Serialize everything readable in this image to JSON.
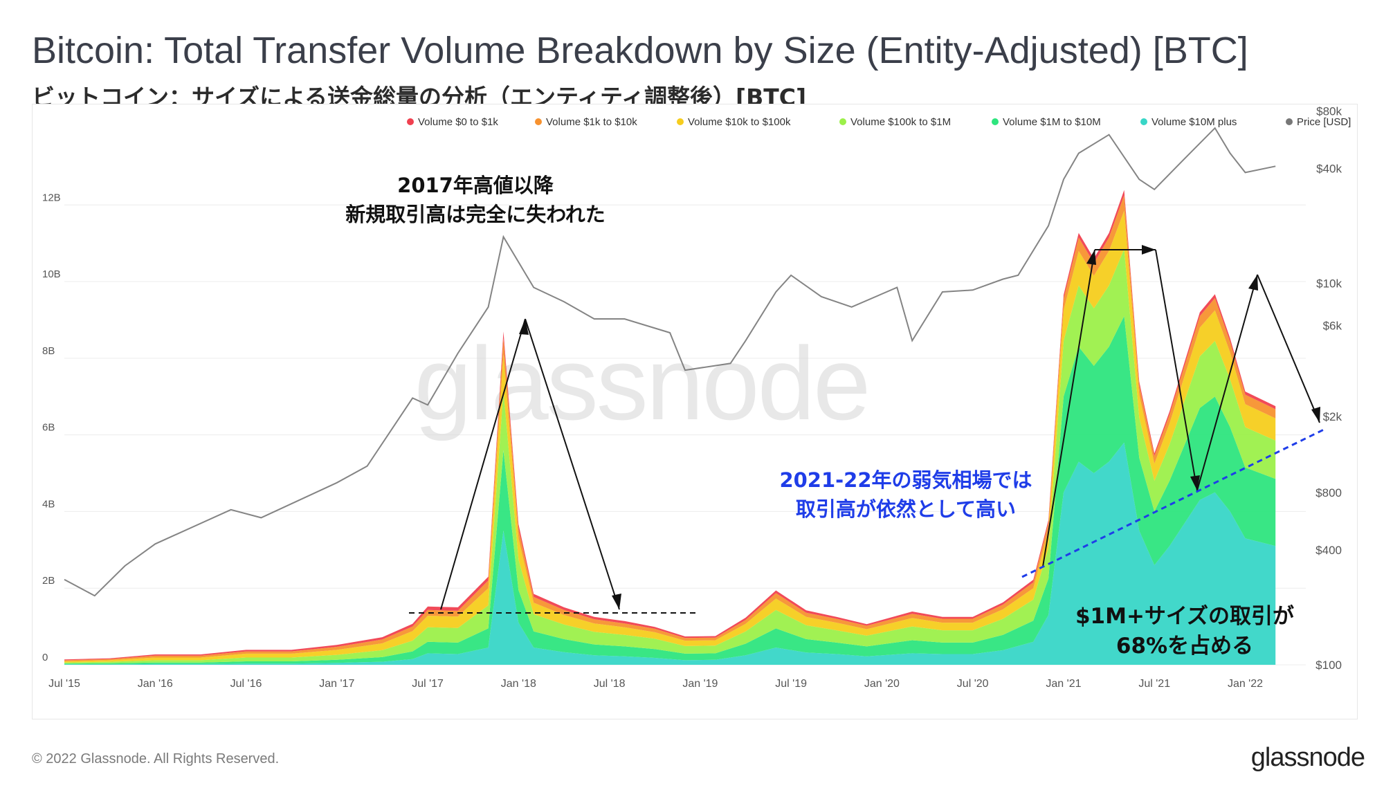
{
  "header": {
    "title": "Bitcoin: Total Transfer Volume Breakdown by Size (Entity-Adjusted) [BTC]",
    "subtitle": "ビットコイン：サイズによる送金総量の分析（エンティティ調整後）[BTC]"
  },
  "footer": {
    "copyright": "© 2022 Glassnode. All Rights Reserved.",
    "brand": "glassnode"
  },
  "watermark": "glassnode",
  "annotations": {
    "peak_2017_line1": "2017年高値以降",
    "peak_2017_line2": "新規取引高は完全に失われた",
    "bear_line1": "2021-22年の弱気相場では",
    "bear_line2": "取引高が依然として高い",
    "large_line1": "$1M+サイズの取引が",
    "large_line2": "68%を占める"
  },
  "chart_data": {
    "type": "area",
    "stacked": true,
    "x_ticks": [
      "Jul '15",
      "Jan '16",
      "Jul '16",
      "Jan '17",
      "Jul '17",
      "Jan '18",
      "Jul '18",
      "Jan '19",
      "Jul '19",
      "Jan '20",
      "Jul '20",
      "Jan '21",
      "Jul '21",
      "Jan '22"
    ],
    "y_left_ticks": [
      "0",
      "2B",
      "4B",
      "6B",
      "8B",
      "10B",
      "12B"
    ],
    "y_left_range": [
      0,
      13900000000
    ],
    "y_right_ticks": [
      "$100",
      "$400",
      "$800",
      "$2k",
      "$6k",
      "$10k",
      "$40k",
      "$80k"
    ],
    "y_right_scale": "log",
    "legend_position": "top-right",
    "grid": true,
    "x": [
      "Jul '15",
      "Oct '15",
      "Jan '16",
      "Apr '16",
      "Jul '16",
      "Oct '16",
      "Jan '17",
      "Apr '17",
      "Jun '17",
      "Jul '17",
      "Sep '17",
      "Nov '17",
      "Dec '17",
      "Jan '18",
      "Feb '18",
      "Apr '18",
      "Jun '18",
      "Aug '18",
      "Oct '18",
      "Dec '18",
      "Feb '19",
      "Apr '19",
      "Jun '19",
      "Aug '19",
      "Oct '19",
      "Dec '19",
      "Mar '20",
      "May '20",
      "Jul '20",
      "Sep '20",
      "Nov '20",
      "Dec '20",
      "Jan '21",
      "Feb '21",
      "Mar '21",
      "Apr '21",
      "May '21",
      "Jun '21",
      "Jul '21",
      "Aug '21",
      "Sep '21",
      "Oct '21",
      "Nov '21",
      "Dec '21",
      "Jan '22",
      "Mar '22"
    ],
    "series": [
      {
        "name": "Volume $0 to $1k",
        "color": "#f0404f",
        "values": [
          0.02,
          0.02,
          0.03,
          0.03,
          0.04,
          0.04,
          0.05,
          0.06,
          0.07,
          0.09,
          0.09,
          0.1,
          0.18,
          0.12,
          0.08,
          0.07,
          0.06,
          0.06,
          0.05,
          0.04,
          0.04,
          0.06,
          0.07,
          0.06,
          0.05,
          0.04,
          0.06,
          0.05,
          0.05,
          0.06,
          0.07,
          0.08,
          0.1,
          0.12,
          0.12,
          0.12,
          0.14,
          0.09,
          0.07,
          0.08,
          0.09,
          0.1,
          0.1,
          0.09,
          0.08,
          0.08
        ]
      },
      {
        "name": "Volume $1k to $10k",
        "color": "#f7922f",
        "values": [
          0.03,
          0.03,
          0.05,
          0.05,
          0.06,
          0.06,
          0.08,
          0.1,
          0.12,
          0.15,
          0.15,
          0.2,
          0.42,
          0.25,
          0.15,
          0.13,
          0.11,
          0.1,
          0.09,
          0.07,
          0.07,
          0.1,
          0.14,
          0.11,
          0.1,
          0.09,
          0.11,
          0.1,
          0.1,
          0.12,
          0.15,
          0.2,
          0.3,
          0.35,
          0.33,
          0.35,
          0.4,
          0.25,
          0.2,
          0.23,
          0.27,
          0.3,
          0.32,
          0.28,
          0.25,
          0.24
        ]
      },
      {
        "name": "Volume $10k to $100k",
        "color": "#f6cd1e",
        "values": [
          0.03,
          0.04,
          0.07,
          0.07,
          0.1,
          0.1,
          0.13,
          0.18,
          0.25,
          0.3,
          0.3,
          0.45,
          0.95,
          0.55,
          0.3,
          0.25,
          0.22,
          0.2,
          0.17,
          0.14,
          0.14,
          0.2,
          0.3,
          0.22,
          0.2,
          0.17,
          0.22,
          0.2,
          0.2,
          0.25,
          0.3,
          0.45,
          0.8,
          0.9,
          0.85,
          0.9,
          1.0,
          0.6,
          0.45,
          0.55,
          0.65,
          0.75,
          0.8,
          0.7,
          0.6,
          0.58
        ]
      },
      {
        "name": "Volume $100k to $1M",
        "color": "#9cf04a",
        "values": [
          0.03,
          0.04,
          0.06,
          0.06,
          0.1,
          0.1,
          0.13,
          0.18,
          0.28,
          0.38,
          0.38,
          0.6,
          1.55,
          0.8,
          0.45,
          0.38,
          0.33,
          0.3,
          0.27,
          0.2,
          0.2,
          0.32,
          0.48,
          0.36,
          0.32,
          0.28,
          0.36,
          0.32,
          0.32,
          0.42,
          0.55,
          0.8,
          1.45,
          1.6,
          1.5,
          1.6,
          1.75,
          1.05,
          0.8,
          0.95,
          1.15,
          1.35,
          1.45,
          1.25,
          1.05,
          1.0
        ]
      },
      {
        "name": "Volume $1M to $10M",
        "color": "#2ee57e",
        "values": [
          0.02,
          0.03,
          0.04,
          0.04,
          0.06,
          0.06,
          0.08,
          0.12,
          0.2,
          0.3,
          0.3,
          0.5,
          2.1,
          0.85,
          0.42,
          0.34,
          0.28,
          0.26,
          0.23,
          0.17,
          0.17,
          0.3,
          0.5,
          0.35,
          0.3,
          0.26,
          0.34,
          0.3,
          0.3,
          0.4,
          0.55,
          0.95,
          2.5,
          3.0,
          2.8,
          3.0,
          3.3,
          1.9,
          1.4,
          1.7,
          2.05,
          2.4,
          2.5,
          2.2,
          1.85,
          1.75
        ]
      },
      {
        "name": "Volume $10M plus",
        "color": "#38d6c7",
        "values": [
          0.01,
          0.01,
          0.02,
          0.02,
          0.03,
          0.03,
          0.05,
          0.08,
          0.15,
          0.3,
          0.28,
          0.45,
          3.5,
          1.1,
          0.45,
          0.33,
          0.25,
          0.22,
          0.18,
          0.12,
          0.13,
          0.25,
          0.45,
          0.32,
          0.28,
          0.22,
          0.3,
          0.28,
          0.28,
          0.38,
          0.6,
          1.3,
          4.5,
          5.3,
          5.0,
          5.3,
          5.8,
          3.5,
          2.6,
          3.1,
          3.7,
          4.3,
          4.5,
          4.0,
          3.3,
          3.1
        ]
      }
    ],
    "price_series": {
      "name": "Price [USD]",
      "color": "#777777",
      "x": [
        "Jul '15",
        "Sep '15",
        "Nov '15",
        "Jan '16",
        "Jun '16",
        "Aug '16",
        "Jan '17",
        "Mar '17",
        "Jun '17",
        "Jul '17",
        "Sep '17",
        "Nov '17",
        "Dec '17",
        "Feb '18",
        "Apr '18",
        "Jun '18",
        "Aug '18",
        "Nov '18",
        "Dec '18",
        "Mar '19",
        "Apr '19",
        "Jun '19",
        "Jul '19",
        "Sep '19",
        "Nov '19",
        "Feb '20",
        "Mar '20",
        "May '20",
        "Jul '20",
        "Sep '20",
        "Oct '20",
        "Dec '20",
        "Jan '21",
        "Feb '21",
        "Apr '21",
        "Jun '21",
        "Jul '21",
        "Sep '21",
        "Nov '21",
        "Dec '21",
        "Jan '22",
        "Mar '22"
      ],
      "values": [
        280,
        230,
        330,
        430,
        650,
        590,
        900,
        1100,
        2500,
        2300,
        4300,
        7500,
        17500,
        9500,
        8000,
        6500,
        6500,
        5500,
        3500,
        3800,
        5000,
        9000,
        11000,
        8500,
        7500,
        9500,
        5000,
        9000,
        9200,
        10500,
        11000,
        20000,
        35000,
        48000,
        60000,
        35000,
        31000,
        45000,
        65000,
        48000,
        38000,
        41000
      ]
    }
  }
}
